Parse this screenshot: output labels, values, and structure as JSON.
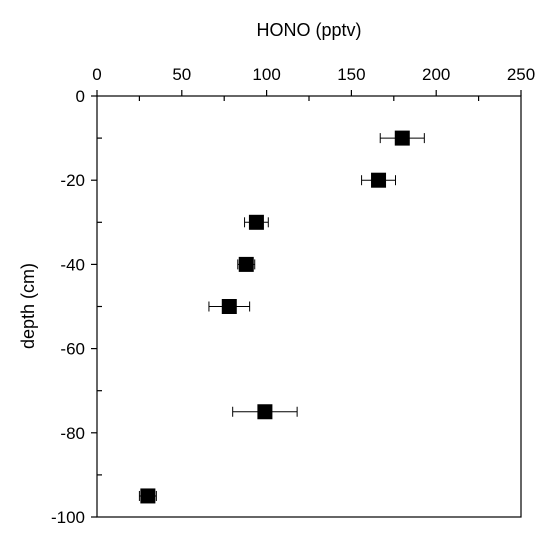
{
  "chart_data": {
    "type": "scatter",
    "title": "",
    "xlabel": "HONO (pptv)",
    "ylabel": "depth (cm)",
    "x_axis_position": "top",
    "xlim": [
      0,
      250
    ],
    "ylim": [
      -100,
      0
    ],
    "x_ticks": [
      0,
      50,
      100,
      150,
      200,
      250
    ],
    "x_tick_labels": [
      "0",
      "50",
      "100",
      "150",
      "200",
      "250"
    ],
    "y_ticks": [
      0,
      -20,
      -40,
      -60,
      -80,
      -100
    ],
    "y_tick_labels": [
      "0",
      "-20",
      "-40",
      "-60",
      "-80",
      "-100"
    ],
    "grid": false,
    "legend": "none",
    "series": [
      {
        "marker": "square",
        "color": "#000000",
        "points": [
          {
            "x": 180,
            "y": -10,
            "x_err": 13
          },
          {
            "x": 166,
            "y": -20,
            "x_err": 10
          },
          {
            "x": 94,
            "y": -30,
            "x_err": 7
          },
          {
            "x": 88,
            "y": -40,
            "x_err": 5
          },
          {
            "x": 78,
            "y": -50,
            "x_err": 12
          },
          {
            "x": 99,
            "y": -75,
            "x_err": 19
          },
          {
            "x": 30,
            "y": -95,
            "x_err": 5
          }
        ]
      }
    ]
  }
}
